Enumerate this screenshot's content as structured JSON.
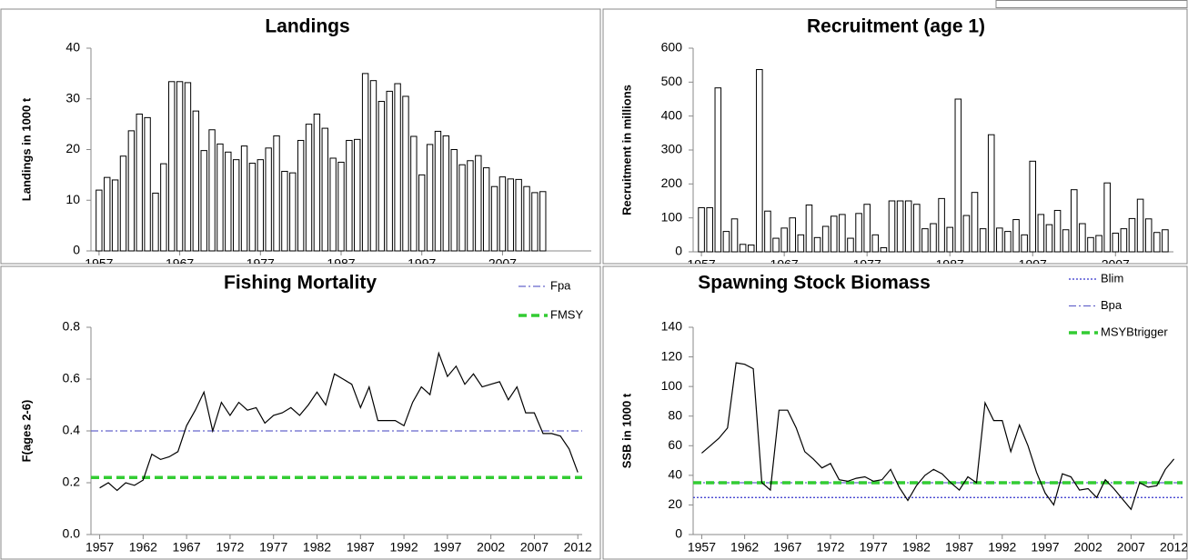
{
  "chart_data": [
    {
      "type": "bar",
      "title": "Landings",
      "y_label": "Landings in 1000 t",
      "x": [
        1957,
        1958,
        1959,
        1960,
        1961,
        1962,
        1963,
        1964,
        1965,
        1966,
        1967,
        1968,
        1969,
        1970,
        1971,
        1972,
        1973,
        1974,
        1975,
        1976,
        1977,
        1978,
        1979,
        1980,
        1981,
        1982,
        1983,
        1984,
        1985,
        1986,
        1987,
        1988,
        1989,
        1990,
        1991,
        1992,
        1993,
        1994,
        1995,
        1996,
        1997,
        1998,
        1999,
        2000,
        2001,
        2002,
        2003,
        2004,
        2005,
        2006,
        2007,
        2008,
        2009,
        2010,
        2011,
        2012
      ],
      "values": [
        12,
        14.5,
        14,
        18.7,
        23.7,
        27,
        26.3,
        11.4,
        17.2,
        33.4,
        33.4,
        33.2,
        27.6,
        19.8,
        23.9,
        21.1,
        19.5,
        18,
        20.7,
        17.3,
        18,
        20.3,
        22.7,
        15.7,
        15.4,
        21.8,
        25,
        27,
        24.2,
        18.3,
        17.5,
        21.8,
        22,
        35,
        33.6,
        29.5,
        31.5,
        33,
        30.5,
        22.6,
        15,
        21,
        23.6,
        22.7,
        20,
        17,
        17.8,
        18.8,
        16.4,
        12.7,
        14.6,
        14.2,
        14.1,
        12.7,
        11.5,
        11.7
      ],
      "color": "#ffffff",
      "xlim": [
        1956,
        2018
      ],
      "xticks": [
        1957,
        1967,
        1977,
        1987,
        1997,
        2007
      ],
      "ylim": [
        0,
        40
      ],
      "yticks": [
        0,
        10,
        20,
        30,
        40
      ]
    },
    {
      "type": "bar",
      "title": "Recruitment (age 1)",
      "y_label": "Recruitment in millions",
      "x": [
        1957,
        1958,
        1959,
        1960,
        1961,
        1962,
        1963,
        1964,
        1965,
        1966,
        1967,
        1968,
        1969,
        1970,
        1971,
        1972,
        1973,
        1974,
        1975,
        1976,
        1977,
        1978,
        1979,
        1980,
        1981,
        1982,
        1983,
        1984,
        1985,
        1986,
        1987,
        1988,
        1989,
        1990,
        1991,
        1992,
        1993,
        1994,
        1995,
        1996,
        1997,
        1998,
        1999,
        2000,
        2001,
        2002,
        2003,
        2004,
        2005,
        2006,
        2007,
        2008,
        2009,
        2010,
        2011,
        2012,
        2013
      ],
      "values": [
        130,
        130,
        483,
        60,
        97,
        22,
        20,
        537,
        120,
        40,
        70,
        100,
        50,
        138,
        42,
        75,
        105,
        110,
        40,
        113,
        140,
        50,
        12,
        150,
        150,
        150,
        140,
        68,
        83,
        157,
        72,
        450,
        107,
        175,
        68,
        345,
        70,
        60,
        95,
        50,
        267,
        110,
        80,
        122,
        65,
        183,
        83,
        42,
        48,
        203,
        55,
        68,
        98,
        155,
        97,
        57,
        65
      ],
      "color": "#ffffff",
      "xlim": [
        1956,
        2014
      ],
      "xticks": [
        1957,
        1967,
        1977,
        1987,
        1997,
        2007
      ],
      "ylim": [
        0,
        600
      ],
      "yticks": [
        0,
        100,
        200,
        300,
        400,
        500,
        600
      ]
    },
    {
      "type": "line",
      "title": "Fishing Mortality",
      "y_label": "F(ages 2-6)",
      "x": [
        1957,
        1958,
        1959,
        1960,
        1961,
        1962,
        1963,
        1964,
        1965,
        1966,
        1967,
        1968,
        1969,
        1970,
        1971,
        1972,
        1973,
        1974,
        1975,
        1976,
        1977,
        1978,
        1979,
        1980,
        1981,
        1982,
        1983,
        1984,
        1985,
        1986,
        1987,
        1988,
        1989,
        1990,
        1991,
        1992,
        1993,
        1994,
        1995,
        1996,
        1997,
        1998,
        1999,
        2000,
        2001,
        2002,
        2003,
        2004,
        2005,
        2006,
        2007,
        2008,
        2009,
        2010,
        2011,
        2012
      ],
      "values": [
        0.18,
        0.2,
        0.17,
        0.2,
        0.19,
        0.21,
        0.31,
        0.29,
        0.3,
        0.32,
        0.42,
        0.48,
        0.55,
        0.4,
        0.51,
        0.46,
        0.51,
        0.48,
        0.49,
        0.43,
        0.46,
        0.47,
        0.49,
        0.46,
        0.5,
        0.55,
        0.5,
        0.62,
        0.6,
        0.58,
        0.49,
        0.57,
        0.44,
        0.44,
        0.44,
        0.42,
        0.51,
        0.57,
        0.54,
        0.7,
        0.61,
        0.65,
        0.58,
        0.62,
        0.57,
        0.58,
        0.59,
        0.52,
        0.57,
        0.47,
        0.47,
        0.39,
        0.39,
        0.38,
        0.33,
        0.24
      ],
      "color": "#000000",
      "xlim": [
        1956,
        2012.5
      ],
      "xticks": [
        1957,
        1962,
        1967,
        1972,
        1977,
        1982,
        1987,
        1992,
        1997,
        2002,
        2007,
        2012
      ],
      "ylim": [
        0,
        0.8
      ],
      "yticks": [
        {
          "value": 0,
          "label": "0.0"
        },
        0.2,
        0.4,
        0.6,
        0.8
      ],
      "reference_lines": [
        {
          "name": "Fpa",
          "value": 0.4,
          "color": "#6666cc",
          "style": "dashdot"
        },
        {
          "name": "FMSY",
          "value": 0.22,
          "color": "#33cc33",
          "style": "dashed"
        }
      ]
    },
    {
      "type": "line",
      "title": "Spawning Stock Biomass",
      "y_label": "SSB in 1000 t",
      "x": [
        1957,
        1958,
        1959,
        1960,
        1961,
        1962,
        1963,
        1964,
        1965,
        1966,
        1967,
        1968,
        1969,
        1970,
        1971,
        1972,
        1973,
        1974,
        1975,
        1976,
        1977,
        1978,
        1979,
        1980,
        1981,
        1982,
        1983,
        1984,
        1985,
        1986,
        1987,
        1988,
        1989,
        1990,
        1991,
        1992,
        1993,
        1994,
        1995,
        1996,
        1997,
        1998,
        1999,
        2000,
        2001,
        2002,
        2003,
        2004,
        2005,
        2006,
        2007,
        2008,
        2009,
        2010,
        2011,
        2012
      ],
      "values": [
        55,
        60,
        65,
        72,
        116,
        115,
        112,
        35,
        30,
        84,
        84,
        72,
        56,
        51,
        45,
        48,
        37,
        36,
        38,
        39,
        36,
        37,
        44,
        32,
        23,
        33,
        40,
        44,
        41,
        35,
        30,
        39,
        35,
        89,
        77,
        77,
        56,
        74,
        60,
        42,
        28,
        20,
        41,
        39,
        30,
        31,
        25,
        37,
        31,
        24,
        17,
        35,
        32,
        33,
        44,
        51
      ],
      "color": "#000000",
      "xlim": [
        1956,
        2013
      ],
      "xticks": [
        1957,
        1962,
        1967,
        1972,
        1977,
        1982,
        1987,
        1992,
        1997,
        2002,
        2007,
        2012
      ],
      "ylim": [
        0,
        140
      ],
      "yticks": [
        0,
        20,
        40,
        60,
        80,
        100,
        120,
        140
      ],
      "reference_lines": [
        {
          "name": "Blim",
          "value": 25,
          "color": "#3333cc",
          "style": "dotted"
        },
        {
          "name": "Bpa",
          "value": 35,
          "color": "#6666cc",
          "style": "dashdot"
        },
        {
          "name": "MSYBtrigger",
          "value": 35,
          "color": "#33cc33",
          "style": "dashed"
        }
      ]
    }
  ]
}
